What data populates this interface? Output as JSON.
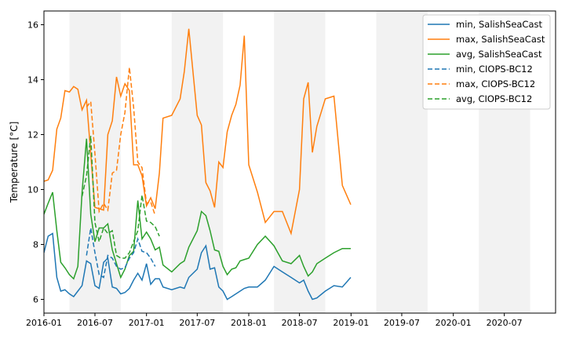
{
  "chart_data": {
    "type": "line",
    "ylabel": "Temperature [$^\\circ C$]",
    "ylabel_display": "Temperature [°C]",
    "ylim": [
      5.5,
      16.5
    ],
    "xlim": [
      "2016-01-01",
      "2020-12-31"
    ],
    "x_ticks": [
      "2016-01",
      "2016-07",
      "2017-01",
      "2017-07",
      "2018-01",
      "2018-07",
      "2019-01",
      "2019-07",
      "2020-01",
      "2020-07"
    ],
    "y_ticks": [
      6,
      8,
      10,
      12,
      14,
      16
    ],
    "grid": false,
    "legend_position": "top-right",
    "shaded_periods": [
      [
        "2016-04-01",
        "2016-10-01"
      ],
      [
        "2017-04-01",
        "2017-10-01"
      ],
      [
        "2018-04-01",
        "2018-10-01"
      ],
      [
        "2019-04-01",
        "2019-10-01"
      ],
      [
        "2020-04-01",
        "2020-10-01"
      ]
    ],
    "colors": {
      "min": "#1f77b4",
      "max": "#ff7f0e",
      "avg": "#2ca02c",
      "shade": "#f2f2f2"
    },
    "series": [
      {
        "name": "min, SalishSeaCast",
        "color": "#1f77b4",
        "style": "solid",
        "points": [
          [
            "2016-01-01",
            7.7
          ],
          [
            "2016-01-16",
            8.3
          ],
          [
            "2016-02-01",
            8.4
          ],
          [
            "2016-02-16",
            6.8
          ],
          [
            "2016-03-01",
            6.3
          ],
          [
            "2016-03-16",
            6.35
          ],
          [
            "2016-04-01",
            6.2
          ],
          [
            "2016-04-16",
            6.1
          ],
          [
            "2016-05-01",
            6.3
          ],
          [
            "2016-05-16",
            6.5
          ],
          [
            "2016-06-01",
            7.4
          ],
          [
            "2016-06-16",
            7.3
          ],
          [
            "2016-07-01",
            6.5
          ],
          [
            "2016-07-16",
            6.4
          ],
          [
            "2016-08-01",
            7.35
          ],
          [
            "2016-08-16",
            7.5
          ],
          [
            "2016-09-01",
            6.45
          ],
          [
            "2016-09-16",
            6.4
          ],
          [
            "2016-10-01",
            6.2
          ],
          [
            "2016-10-16",
            6.25
          ],
          [
            "2016-11-01",
            6.4
          ],
          [
            "2016-11-16",
            6.7
          ],
          [
            "2016-12-01",
            6.95
          ],
          [
            "2016-12-16",
            6.7
          ],
          [
            "2017-01-01",
            7.3
          ],
          [
            "2017-01-16",
            6.55
          ],
          [
            "2017-02-01",
            6.75
          ],
          [
            "2017-02-16",
            6.75
          ],
          [
            "2017-03-01",
            6.45
          ],
          [
            "2017-04-01",
            6.35
          ],
          [
            "2017-05-01",
            6.45
          ],
          [
            "2017-05-16",
            6.4
          ],
          [
            "2017-06-01",
            6.8
          ],
          [
            "2017-07-01",
            7.1
          ],
          [
            "2017-07-16",
            7.7
          ],
          [
            "2017-08-01",
            7.95
          ],
          [
            "2017-08-16",
            7.1
          ],
          [
            "2017-09-01",
            7.15
          ],
          [
            "2017-09-16",
            6.45
          ],
          [
            "2017-10-01",
            6.3
          ],
          [
            "2017-10-16",
            6.0
          ],
          [
            "2017-11-01",
            6.1
          ],
          [
            "2017-11-16",
            6.2
          ],
          [
            "2017-12-01",
            6.3
          ],
          [
            "2017-12-16",
            6.4
          ],
          [
            "2018-01-01",
            6.45
          ],
          [
            "2018-02-01",
            6.45
          ],
          [
            "2018-03-01",
            6.7
          ],
          [
            "2018-04-01",
            7.2
          ],
          [
            "2018-05-01",
            7.0
          ],
          [
            "2018-06-01",
            6.8
          ],
          [
            "2018-07-01",
            6.6
          ],
          [
            "2018-07-16",
            6.7
          ],
          [
            "2018-08-01",
            6.3
          ],
          [
            "2018-08-16",
            6.0
          ],
          [
            "2018-09-01",
            6.05
          ],
          [
            "2018-10-01",
            6.3
          ],
          [
            "2018-11-01",
            6.5
          ],
          [
            "2018-12-01",
            6.45
          ],
          [
            "2018-12-31",
            6.8
          ]
        ]
      },
      {
        "name": "max, SalishSeaCast",
        "color": "#ff7f0e",
        "style": "solid",
        "points": [
          [
            "2016-01-01",
            10.3
          ],
          [
            "2016-01-16",
            10.35
          ],
          [
            "2016-02-01",
            10.7
          ],
          [
            "2016-02-16",
            12.2
          ],
          [
            "2016-03-01",
            12.6
          ],
          [
            "2016-03-16",
            13.6
          ],
          [
            "2016-04-01",
            13.55
          ],
          [
            "2016-04-16",
            13.75
          ],
          [
            "2016-05-01",
            13.65
          ],
          [
            "2016-05-16",
            12.9
          ],
          [
            "2016-06-01",
            13.25
          ],
          [
            "2016-06-16",
            11.3
          ],
          [
            "2016-07-01",
            9.35
          ],
          [
            "2016-07-16",
            9.3
          ],
          [
            "2016-08-01",
            9.25
          ],
          [
            "2016-08-16",
            12.0
          ],
          [
            "2016-09-01",
            12.5
          ],
          [
            "2016-09-16",
            14.1
          ],
          [
            "2016-10-01",
            13.4
          ],
          [
            "2016-10-16",
            13.85
          ],
          [
            "2016-11-01",
            13.6
          ],
          [
            "2016-11-16",
            10.9
          ],
          [
            "2016-12-01",
            10.9
          ],
          [
            "2016-12-16",
            10.5
          ],
          [
            "2017-01-01",
            9.4
          ],
          [
            "2017-01-16",
            9.7
          ],
          [
            "2017-02-01",
            9.3
          ],
          [
            "2017-02-16",
            10.6
          ],
          [
            "2017-03-01",
            12.6
          ],
          [
            "2017-04-01",
            12.7
          ],
          [
            "2017-05-01",
            13.3
          ],
          [
            "2017-05-16",
            14.3
          ],
          [
            "2017-06-01",
            15.85
          ],
          [
            "2017-07-01",
            12.7
          ],
          [
            "2017-07-16",
            12.35
          ],
          [
            "2017-08-01",
            10.25
          ],
          [
            "2017-08-16",
            9.95
          ],
          [
            "2017-09-01",
            9.35
          ],
          [
            "2017-09-16",
            11.0
          ],
          [
            "2017-10-01",
            10.8
          ],
          [
            "2017-10-16",
            12.1
          ],
          [
            "2017-11-01",
            12.7
          ],
          [
            "2017-11-16",
            13.1
          ],
          [
            "2017-12-01",
            13.8
          ],
          [
            "2017-12-16",
            15.6
          ],
          [
            "2018-01-01",
            10.9
          ],
          [
            "2018-02-01",
            9.9
          ],
          [
            "2018-03-01",
            8.8
          ],
          [
            "2018-04-01",
            9.2
          ],
          [
            "2018-05-01",
            9.2
          ],
          [
            "2018-06-01",
            8.4
          ],
          [
            "2018-07-01",
            10.0
          ],
          [
            "2018-07-16",
            13.3
          ],
          [
            "2018-08-01",
            13.9
          ],
          [
            "2018-08-16",
            11.35
          ],
          [
            "2018-09-01",
            12.3
          ],
          [
            "2018-10-01",
            13.3
          ],
          [
            "2018-11-01",
            13.4
          ],
          [
            "2018-12-01",
            10.15
          ],
          [
            "2018-12-31",
            9.45
          ]
        ]
      },
      {
        "name": "avg, SalishSeaCast",
        "color": "#2ca02c",
        "style": "solid",
        "points": [
          [
            "2016-01-01",
            9.1
          ],
          [
            "2016-01-16",
            9.5
          ],
          [
            "2016-02-01",
            9.9
          ],
          [
            "2016-02-16",
            8.5
          ],
          [
            "2016-03-01",
            7.35
          ],
          [
            "2016-03-16",
            7.15
          ],
          [
            "2016-04-01",
            6.9
          ],
          [
            "2016-04-16",
            6.75
          ],
          [
            "2016-05-01",
            7.2
          ],
          [
            "2016-05-16",
            9.9
          ],
          [
            "2016-06-01",
            11.85
          ],
          [
            "2016-06-16",
            9.1
          ],
          [
            "2016-07-01",
            8.1
          ],
          [
            "2016-07-16",
            8.6
          ],
          [
            "2016-08-01",
            8.6
          ],
          [
            "2016-08-16",
            8.75
          ],
          [
            "2016-09-01",
            7.8
          ],
          [
            "2016-09-16",
            7.3
          ],
          [
            "2016-10-01",
            6.8
          ],
          [
            "2016-10-16",
            7.1
          ],
          [
            "2016-11-01",
            7.6
          ],
          [
            "2016-11-16",
            7.75
          ],
          [
            "2016-12-01",
            9.6
          ],
          [
            "2016-12-16",
            8.2
          ],
          [
            "2017-01-01",
            8.45
          ],
          [
            "2017-01-16",
            8.2
          ],
          [
            "2017-02-01",
            7.8
          ],
          [
            "2017-02-16",
            7.9
          ],
          [
            "2017-03-01",
            7.25
          ],
          [
            "2017-04-01",
            7.0
          ],
          [
            "2017-05-01",
            7.3
          ],
          [
            "2017-05-16",
            7.4
          ],
          [
            "2017-06-01",
            7.9
          ],
          [
            "2017-07-01",
            8.5
          ],
          [
            "2017-07-16",
            9.2
          ],
          [
            "2017-08-01",
            9.05
          ],
          [
            "2017-08-16",
            8.5
          ],
          [
            "2017-09-01",
            7.8
          ],
          [
            "2017-09-16",
            7.75
          ],
          [
            "2017-10-01",
            7.2
          ],
          [
            "2017-10-16",
            6.9
          ],
          [
            "2017-11-01",
            7.1
          ],
          [
            "2017-11-16",
            7.15
          ],
          [
            "2017-12-01",
            7.4
          ],
          [
            "2017-12-16",
            7.45
          ],
          [
            "2018-01-01",
            7.5
          ],
          [
            "2018-02-01",
            8.0
          ],
          [
            "2018-03-01",
            8.3
          ],
          [
            "2018-04-01",
            7.95
          ],
          [
            "2018-05-01",
            7.4
          ],
          [
            "2018-06-01",
            7.3
          ],
          [
            "2018-07-01",
            7.6
          ],
          [
            "2018-07-16",
            7.2
          ],
          [
            "2018-08-01",
            6.85
          ],
          [
            "2018-08-16",
            7.0
          ],
          [
            "2018-09-01",
            7.3
          ],
          [
            "2018-10-01",
            7.5
          ],
          [
            "2018-11-01",
            7.7
          ],
          [
            "2018-12-01",
            7.85
          ],
          [
            "2018-12-31",
            7.85
          ]
        ]
      },
      {
        "name": "min, CIOPS-BC12",
        "color": "#1f77b4",
        "style": "dashed",
        "points": [
          [
            "2016-06-01",
            7.6
          ],
          [
            "2016-06-16",
            8.6
          ],
          [
            "2016-07-01",
            7.7
          ],
          [
            "2016-07-16",
            6.9
          ],
          [
            "2016-08-01",
            6.8
          ],
          [
            "2016-08-16",
            7.6
          ],
          [
            "2016-09-01",
            7.5
          ],
          [
            "2016-09-16",
            7.2
          ],
          [
            "2016-10-01",
            7.1
          ],
          [
            "2016-10-16",
            7.15
          ],
          [
            "2016-11-01",
            7.5
          ],
          [
            "2016-11-16",
            7.7
          ],
          [
            "2016-12-01",
            8.2
          ],
          [
            "2016-12-16",
            7.75
          ],
          [
            "2017-01-01",
            7.7
          ],
          [
            "2017-01-16",
            7.5
          ],
          [
            "2017-02-01",
            7.2
          ]
        ]
      },
      {
        "name": "max, CIOPS-BC12",
        "color": "#ff7f0e",
        "style": "dashed",
        "points": [
          [
            "2016-06-01",
            13.0
          ],
          [
            "2016-06-16",
            13.2
          ],
          [
            "2016-07-01",
            11.3
          ],
          [
            "2016-07-16",
            9.2
          ],
          [
            "2016-08-01",
            9.5
          ],
          [
            "2016-08-16",
            9.25
          ],
          [
            "2016-09-01",
            10.6
          ],
          [
            "2016-09-16",
            10.7
          ],
          [
            "2016-10-01",
            12.0
          ],
          [
            "2016-10-16",
            12.8
          ],
          [
            "2016-11-01",
            14.45
          ],
          [
            "2016-11-16",
            13.0
          ],
          [
            "2016-12-01",
            11.0
          ],
          [
            "2016-12-16",
            10.8
          ],
          [
            "2017-01-01",
            9.5
          ],
          [
            "2017-01-16",
            9.55
          ],
          [
            "2017-02-01",
            9.05
          ]
        ]
      },
      {
        "name": "avg, CIOPS-BC12",
        "color": "#2ca02c",
        "style": "dashed",
        "points": [
          [
            "2016-05-16",
            9.75
          ],
          [
            "2016-06-01",
            10.5
          ],
          [
            "2016-06-16",
            11.95
          ],
          [
            "2016-07-01",
            8.8
          ],
          [
            "2016-07-16",
            8.1
          ],
          [
            "2016-08-01",
            8.6
          ],
          [
            "2016-08-16",
            8.4
          ],
          [
            "2016-09-01",
            8.5
          ],
          [
            "2016-09-16",
            7.6
          ],
          [
            "2016-10-01",
            7.5
          ],
          [
            "2016-10-16",
            7.5
          ],
          [
            "2016-11-01",
            7.7
          ],
          [
            "2016-11-16",
            8.1
          ],
          [
            "2016-12-01",
            8.5
          ],
          [
            "2016-12-16",
            9.8
          ],
          [
            "2017-01-01",
            8.85
          ],
          [
            "2017-01-16",
            8.8
          ],
          [
            "2017-02-01",
            8.65
          ],
          [
            "2017-02-16",
            8.3
          ]
        ]
      }
    ]
  }
}
